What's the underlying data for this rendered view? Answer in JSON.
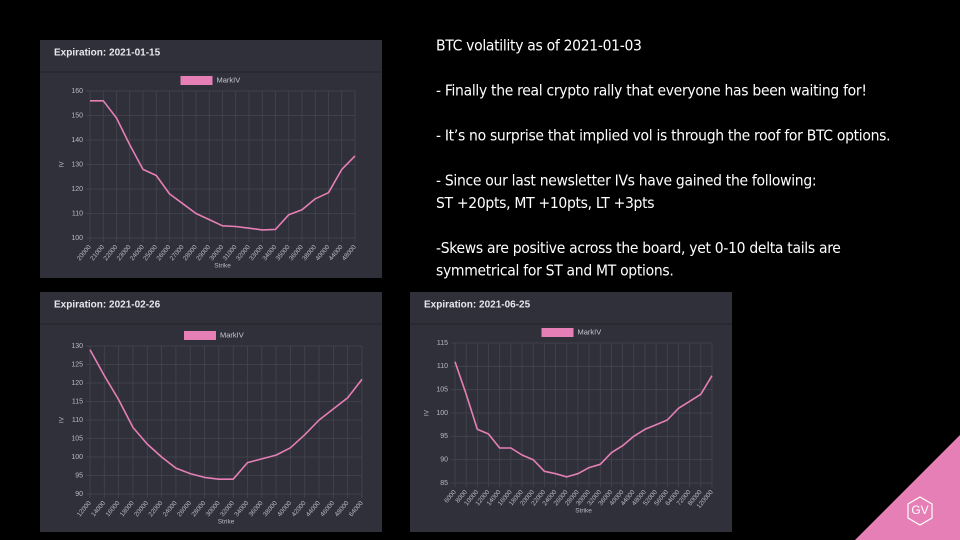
{
  "slide": {
    "blocks": [
      [
        "BTC volatility as of 2021-01-03"
      ],
      [
        "- Finally the real crypto rally that everyone has been waiting for!"
      ],
      [
        "- It’s no surprise that implied vol is through the roof for BTC options."
      ],
      [
        "- Since our last newsletter IVs have gained the following:",
        "ST +20pts, MT +10pts, LT +3pts"
      ],
      [
        "-Skews are positive across the board, yet 0-10 delta tails are",
        "symmetrical for ST and MT options."
      ]
    ],
    "logo": "GV"
  },
  "chart_data": [
    {
      "type": "line",
      "title": "Expiration: 2021-01-15",
      "xlabel": "Strike",
      "ylabel": "IV",
      "categories": [
        "20000",
        "21000",
        "22000",
        "23000",
        "24000",
        "25000",
        "26000",
        "27000",
        "28000",
        "29000",
        "30000",
        "31000",
        "32000",
        "33000",
        "34000",
        "35000",
        "36000",
        "38000",
        "40000",
        "44000",
        "48000"
      ],
      "series": [
        {
          "name": "MarkIV",
          "color": "#e57fb5",
          "values": [
            156,
            156,
            149,
            138,
            128,
            125.5,
            118,
            114,
            110,
            107.5,
            105,
            104.7,
            104,
            103.3,
            103.5,
            109.5,
            111.5,
            116,
            118.5,
            128,
            133.5
          ]
        }
      ],
      "ylim": [
        100,
        160
      ],
      "yticks": [
        100,
        110,
        120,
        130,
        140,
        150,
        160
      ],
      "grid": true
    },
    {
      "type": "line",
      "title": "Expiration: 2021-02-26",
      "xlabel": "Strike",
      "ylabel": "IV",
      "categories": [
        "12000",
        "14000",
        "16000",
        "18000",
        "20000",
        "22000",
        "24000",
        "26000",
        "28000",
        "30000",
        "32000",
        "34000",
        "36000",
        "38000",
        "40000",
        "42000",
        "44000",
        "46000",
        "48000",
        "64000"
      ],
      "series": [
        {
          "name": "MarkIV",
          "color": "#e57fb5",
          "values": [
            129,
            122,
            115.5,
            108,
            103.5,
            100,
            97,
            95.5,
            94.5,
            94,
            94,
            98.5,
            99.5,
            100.5,
            102.5,
            106,
            110,
            113,
            116,
            121
          ]
        }
      ],
      "ylim": [
        90,
        130
      ],
      "yticks": [
        90,
        95,
        100,
        105,
        110,
        115,
        120,
        125,
        130
      ],
      "grid": true
    },
    {
      "type": "line",
      "title": "Expiration: 2021-06-25",
      "xlabel": "Strike",
      "ylabel": "IV",
      "categories": [
        "6000",
        "8000",
        "10000",
        "12000",
        "14000",
        "16000",
        "18000",
        "20000",
        "22000",
        "24000",
        "26000",
        "28000",
        "30000",
        "32000",
        "36000",
        "40000",
        "44000",
        "48000",
        "52000",
        "56000",
        "64000",
        "72000",
        "80000",
        "120000"
      ],
      "series": [
        {
          "name": "MarkIV",
          "color": "#e57fb5",
          "values": [
            111,
            104,
            96.5,
            95.5,
            92.5,
            92.5,
            91,
            90,
            87.5,
            87,
            86.3,
            87,
            88.3,
            89,
            91.5,
            93,
            95,
            96.5,
            97.5,
            98.5,
            101,
            102.5,
            104,
            108
          ]
        }
      ],
      "ylim": [
        85,
        115
      ],
      "yticks": [
        85,
        90,
        95,
        100,
        105,
        110,
        115
      ],
      "grid": true
    }
  ]
}
